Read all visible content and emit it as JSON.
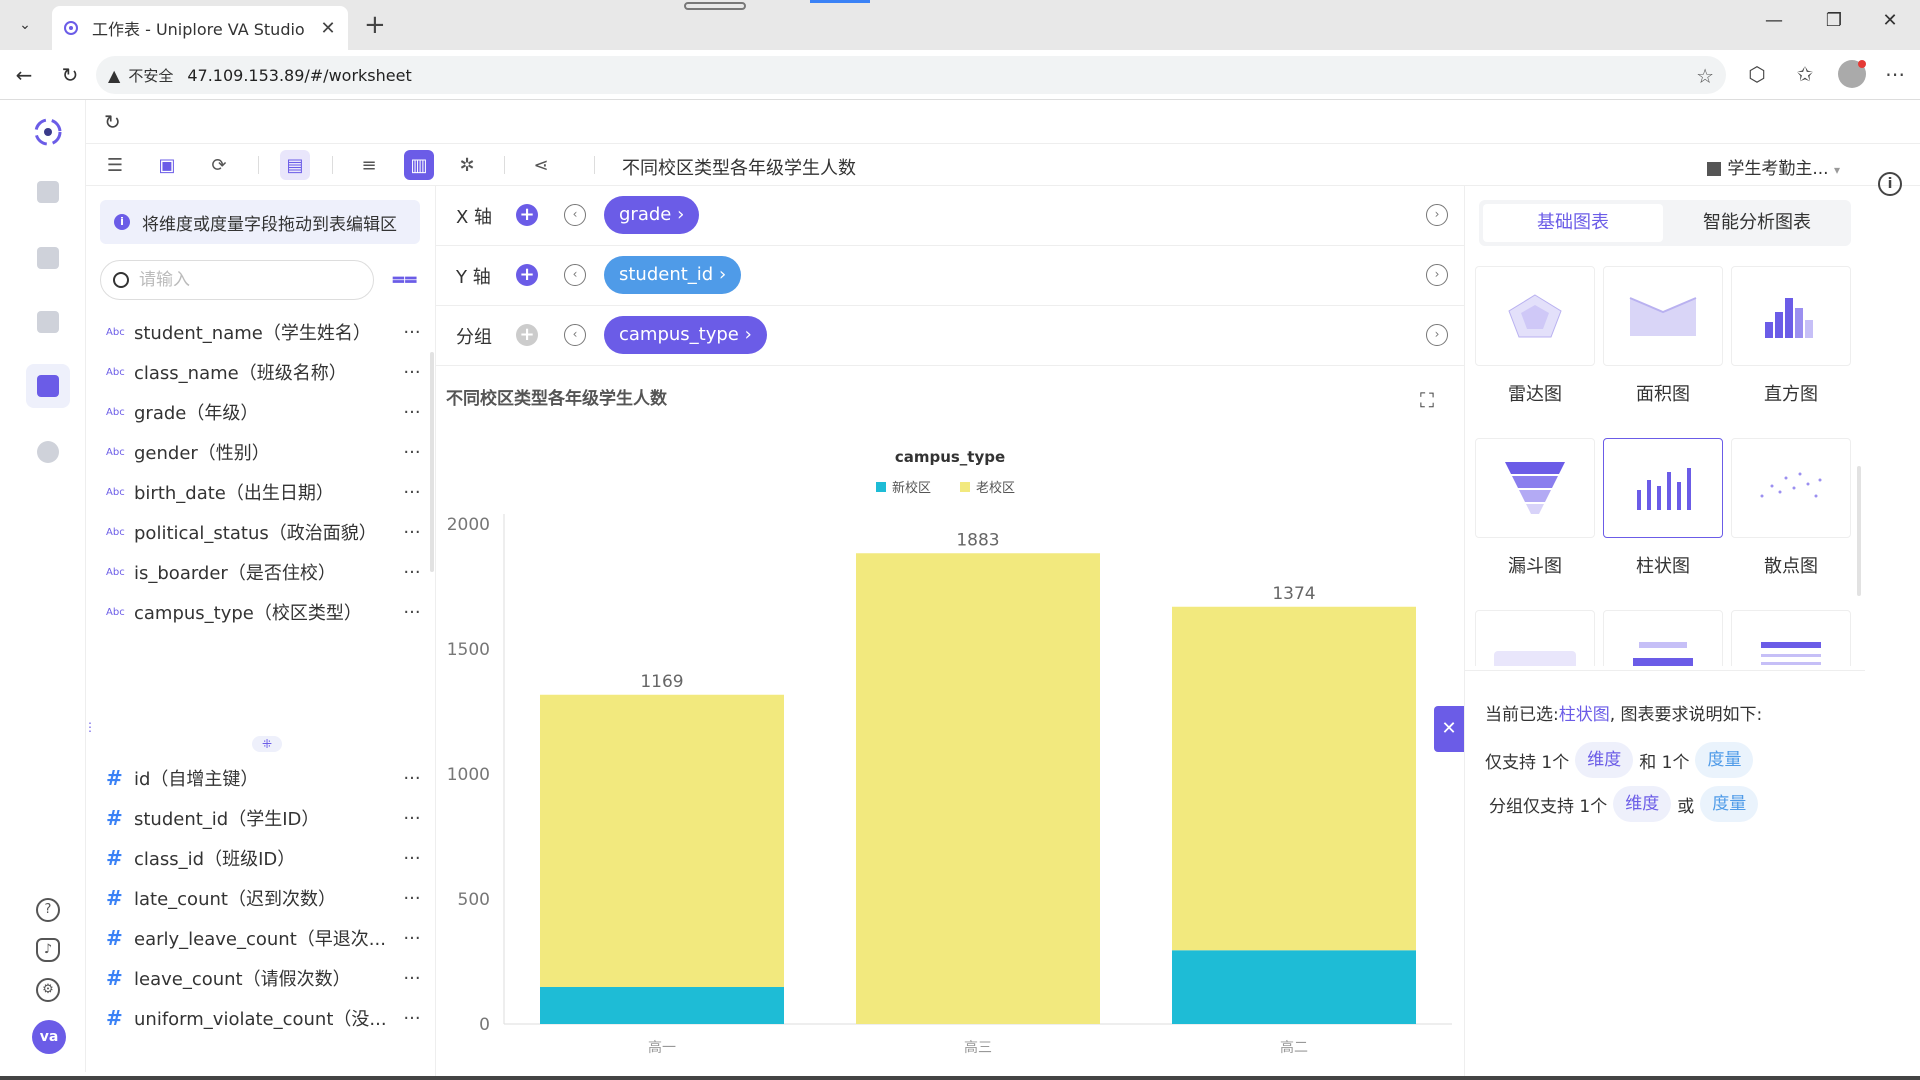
{
  "browser": {
    "tab_title": "工作表 - Uniplore VA Studio",
    "insecure_label": "不安全",
    "url": "47.109.153.89/#/worksheet"
  },
  "toolbar": {
    "sheet_title": "不同校区类型各年级学生人数",
    "dataset_name": "学生考勤主..."
  },
  "field_panel": {
    "hint": "将维度或度量字段拖动到表编辑区",
    "search_placeholder": "请输入",
    "dimension_type_label": "Abc",
    "dimensions": [
      "student_name（学生姓名）",
      "class_name（班级名称）",
      "grade（年级）",
      "gender（性别）",
      "birth_date（出生日期）",
      "political_status（政治面貌）",
      "is_boarder（是否住校）",
      "campus_type（校区类型）"
    ],
    "measure_type_label": "#",
    "measures": [
      "id（自增主键）",
      "student_id（学生ID）",
      "class_id（班级ID）",
      "late_count（迟到次数）",
      "early_leave_count（早退次...",
      "leave_count（请假次数）",
      "uniform_violate_count（没..."
    ],
    "more_label": "···"
  },
  "axes": {
    "x_label": "X 轴",
    "x_field": "grade ›",
    "y_label": "Y 轴",
    "y_field": "student_id ›",
    "group_label": "分组",
    "group_field": "campus_type ›"
  },
  "chart_data": {
    "type": "bar",
    "stacked": true,
    "title": "不同校区类型各年级学生人数",
    "legend_title": "campus_type",
    "legend_position": "top-center",
    "categories": [
      "高一",
      "高三",
      "高二"
    ],
    "series": [
      {
        "name": "新校区",
        "values": [
          148,
          0,
          295
        ],
        "color": "#1ebcd6"
      },
      {
        "name": "老校区",
        "values": [
          1169,
          1883,
          1374
        ],
        "color": "#f2e97e"
      }
    ],
    "data_labels": {
      "新校区": [
        "148",
        "",
        "295"
      ],
      "老校区": [
        "1169",
        "1883",
        "1374"
      ]
    },
    "ylim": [
      0,
      2000
    ],
    "yticks": [
      0,
      500,
      1000,
      1500,
      2000
    ],
    "xlabel": "",
    "ylabel": "",
    "grid": false
  },
  "right_panel": {
    "tab_basic": "基础图表",
    "tab_smart": "智能分析图表",
    "chart_types": [
      "雷达图",
      "面积图",
      "直方图",
      "漏斗图",
      "柱状图",
      "散点图"
    ],
    "selected_prefix": "当前已选:",
    "selected_chart": "柱状图",
    "selected_suffix": ", 图表要求说明如下:",
    "req1_prefix": "仅支持 1个",
    "req1_dim": "维度",
    "req1_mid": "和 1个",
    "req1_mea": "度量",
    "req2_prefix": "分组仅支持 1个",
    "req2_dim": "维度",
    "req2_mid": "或",
    "req2_mea": "度量"
  },
  "user": {
    "avatar_text": "va"
  },
  "colors": {
    "accent": "#6b5ce7",
    "pill_blue": "#4f9be8"
  }
}
